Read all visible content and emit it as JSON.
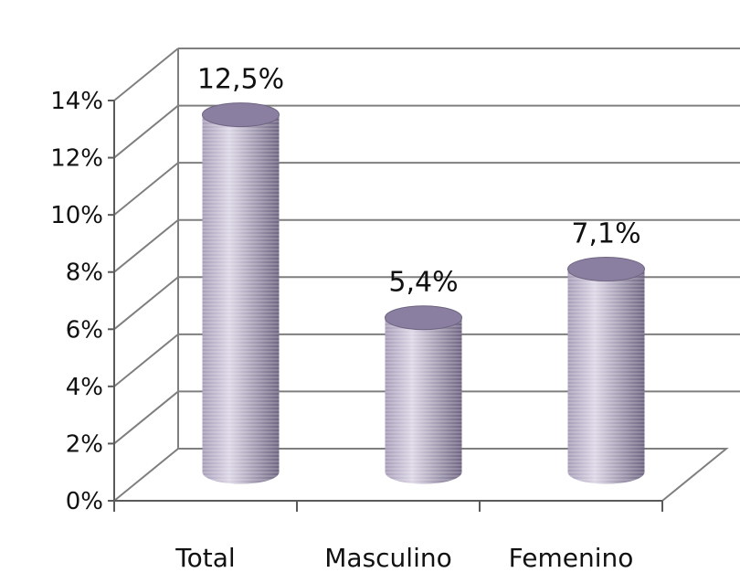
{
  "chart_data": {
    "type": "bar",
    "style": "3d-cylinder",
    "categories": [
      "Total",
      "Masculino",
      "Femenino"
    ],
    "values": [
      12.5,
      5.4,
      7.1
    ],
    "data_labels": [
      "12,5%",
      "5,4%",
      "7,1%"
    ],
    "y_ticks": [
      "0%",
      "2%",
      "4%",
      "6%",
      "8%",
      "10%",
      "12%",
      "14%"
    ],
    "ylim": [
      0,
      14
    ],
    "grid": true,
    "legend": "none",
    "title": "",
    "xlabel": "",
    "ylabel": "",
    "colors": {
      "bar_light": "#dcd7e6",
      "bar_mid": "#a79db8",
      "bar_dark": "#6f6582",
      "bar_top": "#8a7fa0",
      "grid": "#7f7f7f",
      "axis": "#5a5a5a"
    }
  }
}
